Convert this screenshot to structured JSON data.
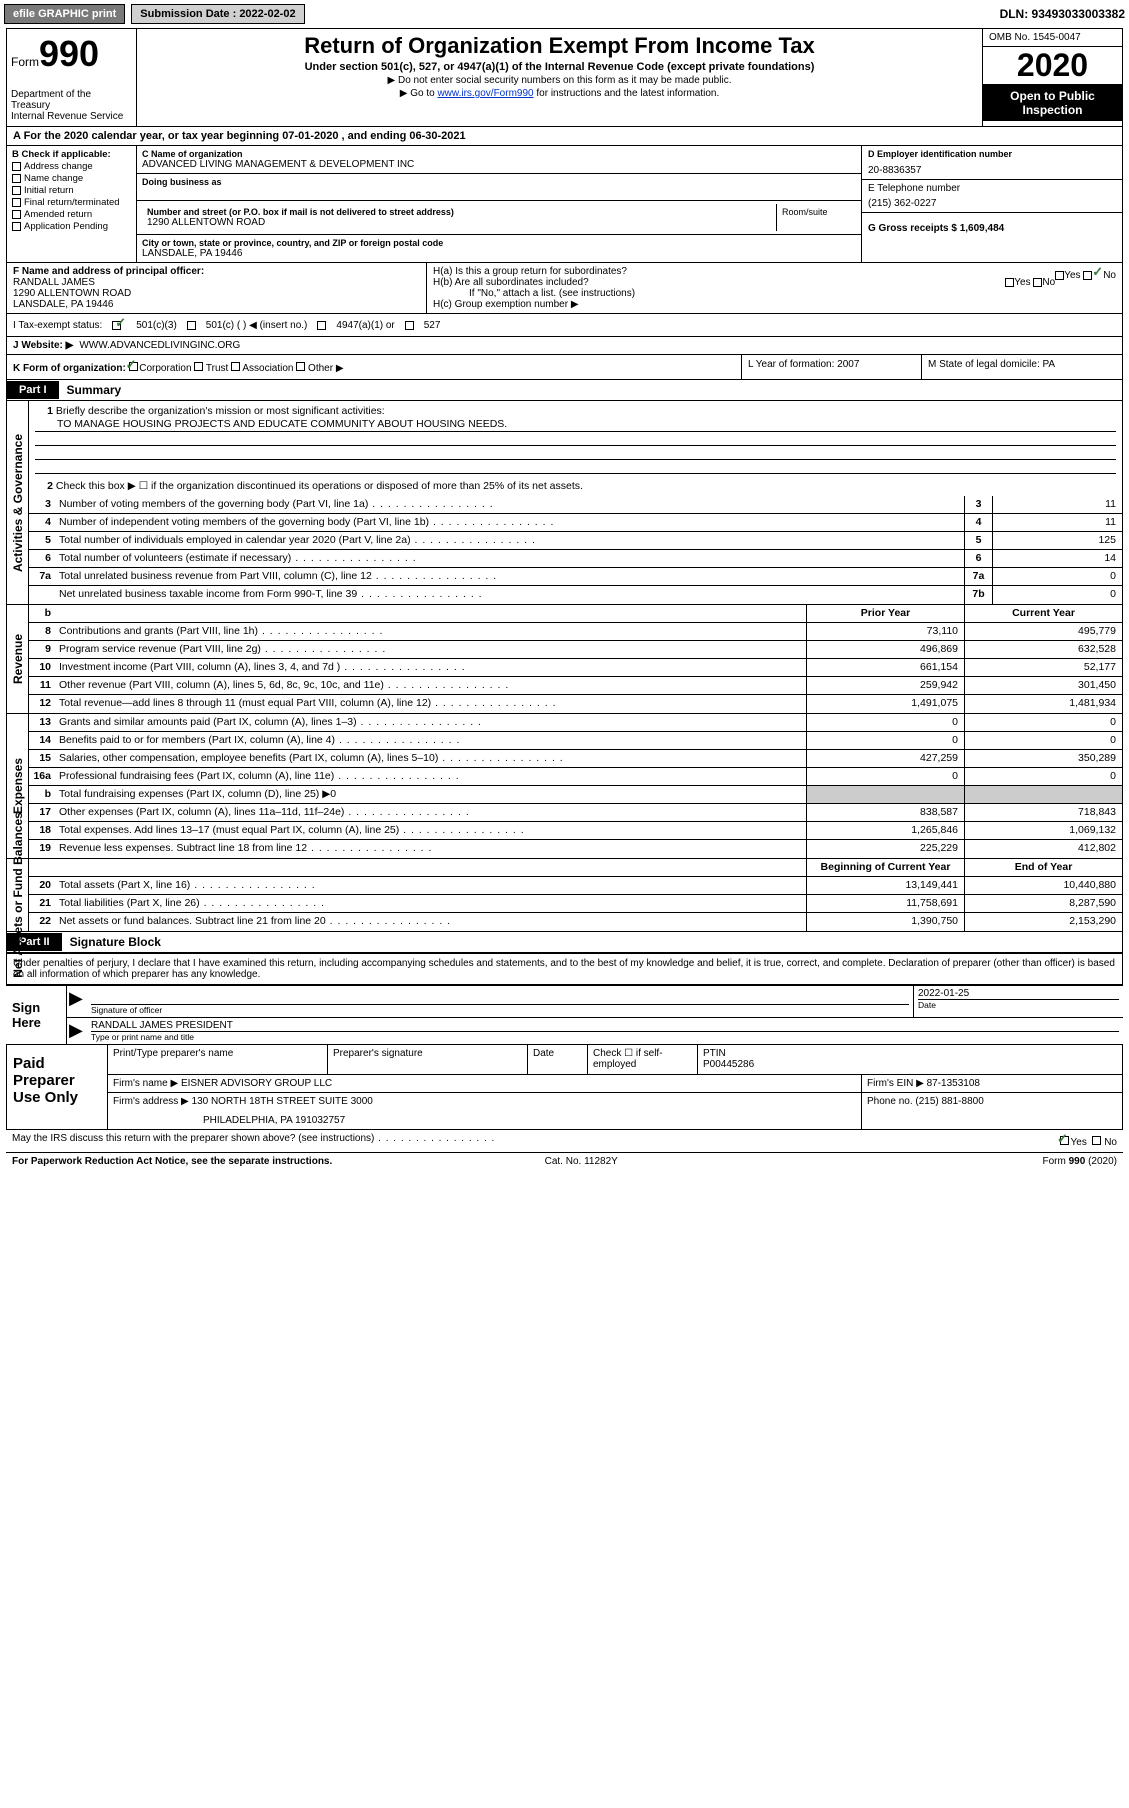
{
  "top": {
    "efile": "efile GRAPHIC print",
    "sub_label": "Submission Date : 2022-02-02",
    "dln": "DLN: 93493033003382"
  },
  "header": {
    "form_word": "Form",
    "form_num": "990",
    "dept": "Department of the Treasury\nInternal Revenue Service",
    "title": "Return of Organization Exempt From Income Tax",
    "sub": "Under section 501(c), 527, or 4947(a)(1) of the Internal Revenue Code (except private foundations)",
    "sub2": "▶ Do not enter social security numbers on this form as it may be made public.",
    "sub3_pre": "▶ Go to ",
    "sub3_link": "www.irs.gov/Form990",
    "sub3_post": " for instructions and the latest information.",
    "omb": "OMB No. 1545-0047",
    "year": "2020",
    "open": "Open to Public Inspection"
  },
  "period": "A   For the 2020 calendar year, or tax year beginning 07-01-2020    , and ending 06-30-2021",
  "colB": {
    "label": "B Check if applicable:",
    "items": [
      "Address change",
      "Name change",
      "Initial return",
      "Final return/terminated",
      "Amended return",
      "Application Pending"
    ]
  },
  "colC": {
    "name_lbl": "C Name of organization",
    "name": "ADVANCED LIVING MANAGEMENT & DEVELOPMENT INC",
    "dba_lbl": "Doing business as",
    "addr_lbl": "Number and street (or P.O. box if mail is not delivered to street address)",
    "room_lbl": "Room/suite",
    "addr": "1290 ALLENTOWN ROAD",
    "city_lbl": "City or town, state or province, country, and ZIP or foreign postal code",
    "city": "LANSDALE, PA  19446"
  },
  "colDE": {
    "d_lbl": "D Employer identification number",
    "d_val": "20-8836357",
    "e_lbl": "E Telephone number",
    "e_val": "(215) 362-0227",
    "g_lbl": "G Gross receipts $ 1,609,484"
  },
  "blockF": {
    "lbl": "F Name and address of principal officer:",
    "name": "RANDALL JAMES",
    "addr": "1290 ALLENTOWN ROAD",
    "city": "LANSDALE, PA  19446"
  },
  "blockH": {
    "a": "H(a)  Is this a group return for subordinates?",
    "b": "H(b)  Are all subordinates included?",
    "b_note": "If \"No,\" attach a list. (see instructions)",
    "c": "H(c)  Group exemption number ▶"
  },
  "itemI": {
    "lbl": "I   Tax-exempt status:",
    "o1": "501(c)(3)",
    "o2": "501(c) (   ) ◀ (insert no.)",
    "o3": "4947(a)(1) or",
    "o4": "527"
  },
  "itemJ": {
    "lbl": "J   Website: ▶",
    "val": " WWW.ADVANCEDLIVINGINC.ORG"
  },
  "itemK": {
    "lbl": "K Form of organization:",
    "o1": "Corporation",
    "o2": "Trust",
    "o3": "Association",
    "o4": "Other ▶",
    "l_lbl": "L Year of formation: 2007",
    "m_lbl": "M State of legal domicile: PA"
  },
  "part1": {
    "tag": "Part I",
    "title": "Summary"
  },
  "ag": {
    "l1": "Briefly describe the organization's mission or most significant activities:",
    "l1v": "TO MANAGE HOUSING PROJECTS AND EDUCATE COMMUNITY ABOUT HOUSING NEEDS.",
    "l2": "Check this box ▶ ☐  if the organization discontinued its operations or disposed of more than 25% of its net assets.",
    "rows": [
      {
        "n": "3",
        "t": "Number of voting members of the governing body (Part VI, line 1a)",
        "b": "3",
        "v": "11"
      },
      {
        "n": "4",
        "t": "Number of independent voting members of the governing body (Part VI, line 1b)",
        "b": "4",
        "v": "11"
      },
      {
        "n": "5",
        "t": "Total number of individuals employed in calendar year 2020 (Part V, line 2a)",
        "b": "5",
        "v": "125"
      },
      {
        "n": "6",
        "t": "Total number of volunteers (estimate if necessary)",
        "b": "6",
        "v": "14"
      },
      {
        "n": "7a",
        "t": "Total unrelated business revenue from Part VIII, column (C), line 12",
        "b": "7a",
        "v": "0"
      },
      {
        "n": "",
        "t": "Net unrelated business taxable income from Form 990-T, line 39",
        "b": "7b",
        "v": "0"
      }
    ]
  },
  "rev": {
    "hdrB": "b",
    "hdrP": "Prior Year",
    "hdrC": "Current Year",
    "rows": [
      {
        "n": "8",
        "t": "Contributions and grants (Part VIII, line 1h)",
        "p": "73,110",
        "c": "495,779"
      },
      {
        "n": "9",
        "t": "Program service revenue (Part VIII, line 2g)",
        "p": "496,869",
        "c": "632,528"
      },
      {
        "n": "10",
        "t": "Investment income (Part VIII, column (A), lines 3, 4, and 7d )",
        "p": "661,154",
        "c": "52,177"
      },
      {
        "n": "11",
        "t": "Other revenue (Part VIII, column (A), lines 5, 6d, 8c, 9c, 10c, and 11e)",
        "p": "259,942",
        "c": "301,450"
      },
      {
        "n": "12",
        "t": "Total revenue—add lines 8 through 11 (must equal Part VIII, column (A), line 12)",
        "p": "1,491,075",
        "c": "1,481,934"
      }
    ]
  },
  "exp": {
    "rows": [
      {
        "n": "13",
        "t": "Grants and similar amounts paid (Part IX, column (A), lines 1–3)",
        "p": "0",
        "c": "0"
      },
      {
        "n": "14",
        "t": "Benefits paid to or for members (Part IX, column (A), line 4)",
        "p": "0",
        "c": "0"
      },
      {
        "n": "15",
        "t": "Salaries, other compensation, employee benefits (Part IX, column (A), lines 5–10)",
        "p": "427,259",
        "c": "350,289"
      },
      {
        "n": "16a",
        "t": "Professional fundraising fees (Part IX, column (A), line 11e)",
        "p": "0",
        "c": "0"
      },
      {
        "n": "b",
        "t": "Total fundraising expenses (Part IX, column (D), line 25) ▶0",
        "p": "",
        "c": "",
        "shaded": true
      },
      {
        "n": "17",
        "t": "Other expenses (Part IX, column (A), lines 11a–11d, 11f–24e)",
        "p": "838,587",
        "c": "718,843"
      },
      {
        "n": "18",
        "t": "Total expenses. Add lines 13–17 (must equal Part IX, column (A), line 25)",
        "p": "1,265,846",
        "c": "1,069,132"
      },
      {
        "n": "19",
        "t": "Revenue less expenses. Subtract line 18 from line 12",
        "p": "225,229",
        "c": "412,802"
      }
    ]
  },
  "na": {
    "hdrP": "Beginning of Current Year",
    "hdrC": "End of Year",
    "rows": [
      {
        "n": "20",
        "t": "Total assets (Part X, line 16)",
        "p": "13,149,441",
        "c": "10,440,880"
      },
      {
        "n": "21",
        "t": "Total liabilities (Part X, line 26)",
        "p": "11,758,691",
        "c": "8,287,590"
      },
      {
        "n": "22",
        "t": "Net assets or fund balances. Subtract line 21 from line 20",
        "p": "1,390,750",
        "c": "2,153,290"
      }
    ]
  },
  "part2": {
    "tag": "Part II",
    "title": "Signature Block"
  },
  "penalty": "Under penalties of perjury, I declare that I have examined this return, including accompanying schedules and statements, and to the best of my knowledge and belief, it is true, correct, and complete. Declaration of preparer (other than officer) is based on all information of which preparer has any knowledge.",
  "sign": {
    "here": "Sign Here",
    "sig_lbl": "Signature of officer",
    "date_lbl": "Date",
    "date_val": "2022-01-25",
    "name": "RANDALL JAMES PRESIDENT",
    "name_lbl": "Type or print name and title"
  },
  "prep": {
    "here": "Paid Preparer Use Only",
    "r1": {
      "a": "Print/Type preparer's name",
      "b": "Preparer's signature",
      "c": "Date",
      "d": "Check ☐ if self-employed",
      "e": "PTIN",
      "ev": "P00445286"
    },
    "r2": {
      "a": "Firm's name    ▶ EISNER ADVISORY GROUP LLC",
      "b": "Firm's EIN ▶ 87-1353108"
    },
    "r3": {
      "a": "Firm's address ▶ 130 NORTH 18TH STREET SUITE 3000",
      "b": "Phone no. (215) 881-8800"
    },
    "r3b": "PHILADELPHIA, PA  191032757"
  },
  "discuss": "May the IRS discuss this return with the preparer shown above? (see instructions)",
  "foot": {
    "a": "For Paperwork Reduction Act Notice, see the separate instructions.",
    "b": "Cat. No. 11282Y",
    "c": "Form 990 (2020)"
  },
  "side_labels": {
    "ag": "Activities & Governance",
    "rev": "Revenue",
    "exp": "Expenses",
    "na": "Net Assets or Fund Balances"
  },
  "yn": {
    "yes": "Yes",
    "no": "No"
  }
}
